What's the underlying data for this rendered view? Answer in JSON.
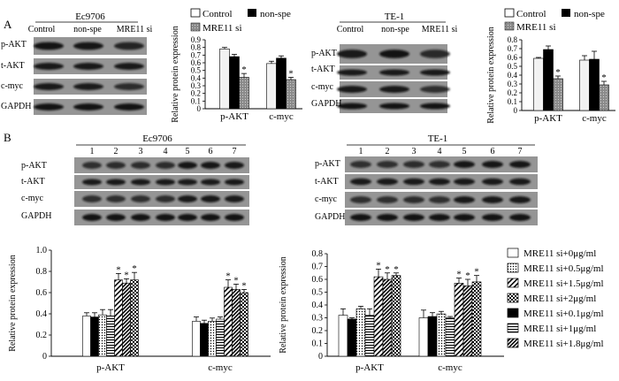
{
  "panel_labels": {
    "a": "A",
    "b": "B"
  },
  "blot_rows": [
    "p-AKT",
    "t-AKT",
    "c-myc",
    "GAPDH"
  ],
  "panel_a": {
    "ec9706_blot": {
      "cell_line": "Ec9706",
      "lanes": [
        "Control",
        "non-spe",
        "MRE11 si"
      ]
    },
    "te1_blot": {
      "cell_line": "TE-1",
      "lanes": [
        "Control",
        "non-spe",
        "MRE11 si"
      ]
    }
  },
  "panel_b": {
    "ec9706_blot": {
      "cell_line": "Ec9706",
      "lanes": [
        "1",
        "2",
        "3",
        "4",
        "5",
        "6",
        "7"
      ]
    },
    "te1_blot": {
      "cell_line": "TE-1",
      "lanes": [
        "1",
        "2",
        "3",
        "4",
        "5",
        "6",
        "7"
      ]
    },
    "legend": [
      "MRE11 si+0μg/ml",
      "MRE11 si+0.5μg/ml",
      "MRE11 si+1.5μg/ml",
      "MRE11 si+2μg/ml",
      "MRE11 si+0.1μg/ml",
      "MRE11 si+1μg/ml",
      "MRE11 si+1.8μg/ml"
    ]
  },
  "chart_data": [
    {
      "id": "a-ec9706",
      "type": "bar",
      "categories": [
        "p-AKT",
        "c-myc"
      ],
      "ylabel": "Relative protein expression",
      "ylim": [
        0,
        0.9
      ],
      "yticks": [
        "0",
        "0.1",
        "0.2",
        "0.3",
        "0.4",
        "0.5",
        "0.6",
        "0.7",
        "0.8",
        "0.9"
      ],
      "series": [
        {
          "name": "Control",
          "values": [
            0.78,
            0.59
          ],
          "errors": [
            0.02,
            0.03
          ],
          "sig": [
            "",
            ""
          ]
        },
        {
          "name": "non-spe",
          "values": [
            0.68,
            0.66
          ],
          "errors": [
            0.03,
            0.03
          ],
          "sig": [
            "",
            ""
          ]
        },
        {
          "name": "MRE11 si",
          "values": [
            0.41,
            0.38
          ],
          "errors": [
            0.05,
            0.03
          ],
          "sig": [
            "*",
            "*"
          ]
        }
      ],
      "legend_position": "top"
    },
    {
      "id": "a-te1",
      "type": "bar",
      "categories": [
        "p-AKT",
        "c-myc"
      ],
      "ylabel": "Relative protein expression",
      "ylim": [
        0,
        0.8
      ],
      "yticks": [
        "0",
        "0.1",
        "0.2",
        "0.3",
        "0.4",
        "0.5",
        "0.6",
        "0.7",
        "0.8"
      ],
      "series": [
        {
          "name": "Control",
          "values": [
            0.59,
            0.57
          ],
          "errors": [
            0.01,
            0.05
          ],
          "sig": [
            "",
            ""
          ]
        },
        {
          "name": "non-spe",
          "values": [
            0.69,
            0.58
          ],
          "errors": [
            0.04,
            0.09
          ],
          "sig": [
            "",
            ""
          ]
        },
        {
          "name": "MRE11 si",
          "values": [
            0.36,
            0.29
          ],
          "errors": [
            0.03,
            0.04
          ],
          "sig": [
            "*",
            "*"
          ]
        }
      ],
      "legend_position": "top"
    },
    {
      "id": "b-ec9706",
      "type": "bar",
      "categories": [
        "p-AKT",
        "c-myc"
      ],
      "ylabel": "Relative protein expression",
      "ylim": [
        0,
        1.0
      ],
      "yticks": [
        "0",
        "0.2",
        "0.4",
        "0.6",
        "0.8",
        "1.0"
      ],
      "series": [
        {
          "name": "MRE11 si+0μg/ml",
          "values": [
            0.38,
            0.33
          ],
          "errors": [
            0.03,
            0.04
          ],
          "sig": [
            "",
            ""
          ]
        },
        {
          "name": "MRE11 si+0.1μg/ml",
          "values": [
            0.37,
            0.31
          ],
          "errors": [
            0.04,
            0.03
          ],
          "sig": [
            "",
            ""
          ]
        },
        {
          "name": "MRE11 si+0.5μg/ml",
          "values": [
            0.39,
            0.33
          ],
          "errors": [
            0.05,
            0.03
          ],
          "sig": [
            "",
            ""
          ]
        },
        {
          "name": "MRE11 si+1μg/ml",
          "values": [
            0.38,
            0.35
          ],
          "errors": [
            0.06,
            0.02
          ],
          "sig": [
            "",
            ""
          ]
        },
        {
          "name": "MRE11 si+1.5μg/ml",
          "values": [
            0.72,
            0.65
          ],
          "errors": [
            0.06,
            0.07
          ],
          "sig": [
            "*",
            "*"
          ]
        },
        {
          "name": "MRE11 si+1.8μg/ml",
          "values": [
            0.69,
            0.63
          ],
          "errors": [
            0.04,
            0.05
          ],
          "sig": [
            "*",
            "*"
          ]
        },
        {
          "name": "MRE11 si+2μg/ml",
          "values": [
            0.72,
            0.6
          ],
          "errors": [
            0.07,
            0.03
          ],
          "sig": [
            "*",
            "*"
          ]
        }
      ]
    },
    {
      "id": "b-te1",
      "type": "bar",
      "categories": [
        "p-AKT",
        "c-myc"
      ],
      "ylabel": "Relative protein expression",
      "ylim": [
        0,
        0.8
      ],
      "yticks": [
        "0",
        "0.1",
        "0.2",
        "0.3",
        "0.4",
        "0.5",
        "0.6",
        "0.7",
        "0.8"
      ],
      "series": [
        {
          "name": "MRE11 si+0μg/ml",
          "values": [
            0.32,
            0.3
          ],
          "errors": [
            0.05,
            0.06
          ],
          "sig": [
            "",
            ""
          ]
        },
        {
          "name": "MRE11 si+0.1μg/ml",
          "values": [
            0.29,
            0.31
          ],
          "errors": [
            0.01,
            0.03
          ],
          "sig": [
            "",
            ""
          ]
        },
        {
          "name": "MRE11 si+0.5μg/ml",
          "values": [
            0.37,
            0.33
          ],
          "errors": [
            0.02,
            0.02
          ],
          "sig": [
            "",
            ""
          ]
        },
        {
          "name": "MRE11 si+1μg/ml",
          "values": [
            0.32,
            0.3
          ],
          "errors": [
            0.05,
            0.01
          ],
          "sig": [
            "",
            ""
          ]
        },
        {
          "name": "MRE11 si+1.5μg/ml",
          "values": [
            0.62,
            0.57
          ],
          "errors": [
            0.06,
            0.04
          ],
          "sig": [
            "*",
            "*"
          ]
        },
        {
          "name": "MRE11 si+1.8μg/ml",
          "values": [
            0.6,
            0.55
          ],
          "errors": [
            0.05,
            0.05
          ],
          "sig": [
            "*",
            "*"
          ]
        },
        {
          "name": "MRE11 si+2μg/ml",
          "values": [
            0.63,
            0.58
          ],
          "errors": [
            0.02,
            0.05
          ],
          "sig": [
            "*",
            "*"
          ]
        }
      ]
    }
  ]
}
